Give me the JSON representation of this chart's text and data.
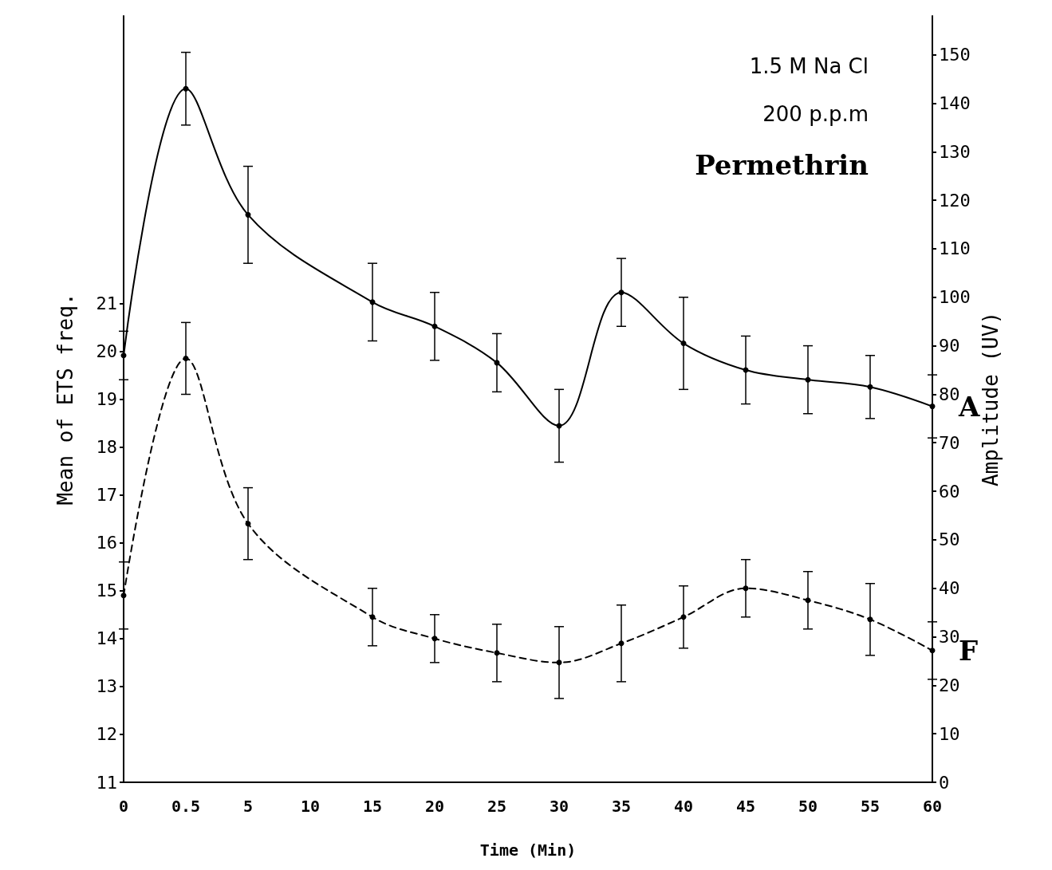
{
  "chart_data": {
    "type": "line",
    "xlabel": "Time (Min)",
    "ylabel": "Mean of ETS freq.",
    "y2label": "Amplitude (UV)",
    "categories": [
      "0",
      "0.5",
      "5",
      "10",
      "15",
      "20",
      "25",
      "30",
      "35",
      "40",
      "45",
      "50",
      "55",
      "60"
    ],
    "series": [
      {
        "name": "A",
        "color": "#000000",
        "axis": "y2",
        "line_style": "solid",
        "values": [
          88,
          143,
          117,
          null,
          99,
          94,
          86.5,
          73.5,
          101,
          90.5,
          85,
          83,
          81.5,
          77.5
        ],
        "errors": [
          5,
          7.5,
          10,
          null,
          8,
          7,
          6,
          7.5,
          7,
          9.5,
          7,
          7,
          6.5,
          6.5
        ]
      },
      {
        "name": "F",
        "color": "#000000",
        "axis": "y",
        "line_style": "dashed",
        "values": [
          14.9,
          19.85,
          16.4,
          null,
          14.45,
          14.0,
          13.7,
          13.5,
          13.9,
          14.45,
          15.05,
          14.8,
          14.4,
          13.75
        ],
        "errors": [
          0.7,
          0.75,
          0.75,
          null,
          0.6,
          0.5,
          0.6,
          0.75,
          0.8,
          0.65,
          0.6,
          0.6,
          0.75,
          0.6
        ]
      }
    ],
    "ylim": [
      11,
      27
    ],
    "yticks": [
      11,
      12,
      13,
      14,
      15,
      16,
      17,
      18,
      19,
      20,
      21
    ],
    "y2lim": [
      0,
      158
    ],
    "y2ticks": [
      0,
      10,
      20,
      30,
      40,
      50,
      60,
      70,
      80,
      90,
      100,
      110,
      120,
      130,
      140,
      150
    ],
    "annotations": [
      "1.5 M Na Cl",
      "200 p.p.m",
      "Permethrin"
    ],
    "marker": "circle",
    "grid": false,
    "legend": false
  }
}
